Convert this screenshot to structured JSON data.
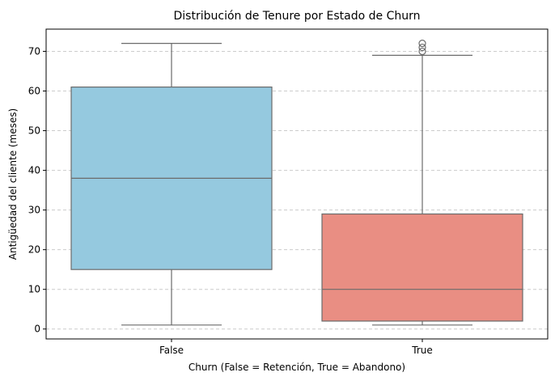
{
  "chart_data": {
    "type": "boxplot",
    "title": "Distribución de Tenure por Estado de Churn",
    "xlabel": "Churn (False = Retención, True = Abandono)",
    "ylabel": "Antigüedad del cliente (meses)",
    "ylim": [
      -2.5,
      75.6
    ],
    "yticks": [
      0,
      10,
      20,
      30,
      40,
      50,
      60,
      70
    ],
    "ytick_labels": [
      "0",
      "10",
      "20",
      "30",
      "40",
      "50",
      "60",
      "70"
    ],
    "grid": "y-dashed",
    "categories": [
      "False",
      "True"
    ],
    "boxes": [
      {
        "category": "False",
        "whisker_low": 1,
        "q1": 15,
        "median": 38,
        "q3": 61,
        "whisker_high": 72,
        "outliers": [],
        "color": "#95c9df"
      },
      {
        "category": "True",
        "whisker_low": 1,
        "q1": 2,
        "median": 10,
        "q3": 29,
        "whisker_high": 69,
        "outliers": [
          70,
          71,
          72
        ],
        "color": "#e98e83"
      }
    ],
    "line_color": "#6b6b6b",
    "grid_color": "#cccccc"
  }
}
